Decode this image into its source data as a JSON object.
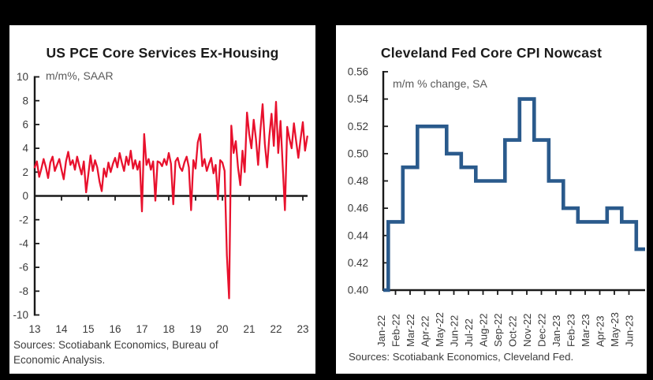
{
  "chart_data": [
    {
      "type": "line",
      "title": "US PCE Core Services Ex-Housing",
      "unit_label": "m/m%, SAAR",
      "sources": "Sources: Scotiabank Economics, Bureau of Economic Analysis.",
      "xlabel": "",
      "ylabel": "m/m%, SAAR",
      "ylim": [
        -10,
        10
      ],
      "y_tick_step": 2,
      "y_tick_labels": [
        "10",
        "8",
        "6",
        "4",
        "2",
        "0",
        "-2",
        "-4",
        "-6",
        "-8",
        "-10"
      ],
      "x_tick_labels": [
        "13",
        "14",
        "15",
        "16",
        "17",
        "18",
        "19",
        "20",
        "21",
        "22",
        "23"
      ],
      "x_start": "2013-01",
      "x_frequency": "monthly",
      "grid": false,
      "legend": "none",
      "line_color": "#E8112D",
      "axis_color": "#1a1a1a",
      "values": [
        2.4,
        2.9,
        1.6,
        2.3,
        3.1,
        2.4,
        1.5,
        2.8,
        3.3,
        2.1,
        2.6,
        3.1,
        2.2,
        1.4,
        2.9,
        3.7,
        2.6,
        3.0,
        2.2,
        3.3,
        2.5,
        1.8,
        2.9,
        0.3,
        1.8,
        3.4,
        2.1,
        3.0,
        2.4,
        1.2,
        0.4,
        2.3,
        1.6,
        2.8,
        2.0,
        2.7,
        3.2,
        2.4,
        3.6,
        2.8,
        2.1,
        3.3,
        2.6,
        3.8,
        2.3,
        3.0,
        2.2,
        2.9,
        -1.3,
        5.2,
        2.6,
        3.1,
        2.2,
        2.9,
        -0.4,
        2.9,
        2.8,
        2.5,
        3.1,
        2.6,
        3.6,
        2.7,
        -0.7,
        2.9,
        3.2,
        2.4,
        2.1,
        2.8,
        3.3,
        2.4,
        -1.2,
        3.0,
        2.3,
        4.5,
        5.2,
        2.5,
        3.1,
        2.1,
        2.7,
        3.2,
        1.9,
        2.6,
        -0.3,
        3.0,
        2.8,
        2.1,
        -5.0,
        -8.6,
        5.9,
        3.6,
        4.6,
        2.4,
        0.9,
        3.8,
        2.0,
        7.0,
        5.2,
        4.0,
        6.4,
        4.8,
        2.6,
        5.5,
        7.7,
        4.4,
        2.4,
        5.0,
        6.9,
        4.2,
        7.9,
        3.6,
        6.3,
        2.5,
        -1.2,
        5.8,
        4.8,
        4.0,
        6.1,
        4.6,
        3.2,
        4.8,
        6.2,
        3.8,
        5.0
      ]
    },
    {
      "type": "step",
      "title": "Cleveland Fed Core CPI Nowcast",
      "unit_label": "m/m % change, SA",
      "sources": "Sources: Scotiabank Economics, Cleveland Fed.",
      "xlabel": "",
      "ylabel": "m/m % change, SA",
      "ylim": [
        0.4,
        0.56
      ],
      "y_tick_step": 0.02,
      "y_tick_labels": [
        "0.56",
        "0.54",
        "0.52",
        "0.50",
        "0.48",
        "0.46",
        "0.44",
        "0.42",
        "0.40"
      ],
      "x_tick_labels": [
        "Jan-22",
        "Feb-22",
        "Mar-22",
        "Apr-22",
        "May-22",
        "Jun-22",
        "Jul-22",
        "Aug-22",
        "Sep-22",
        "Oct-22",
        "Nov-22",
        "Dec-22",
        "Jan-23",
        "Feb-23",
        "Mar-23",
        "Apr-23",
        "May-23",
        "Jun-23"
      ],
      "grid": false,
      "legend": "none",
      "line_color": "#2A5A8C",
      "axis_color": "#1a1a1a",
      "values": [
        0.4,
        0.45,
        0.49,
        0.52,
        0.52,
        0.5,
        0.49,
        0.48,
        0.48,
        0.51,
        0.54,
        0.51,
        0.48,
        0.46,
        0.45,
        0.45,
        0.46,
        0.45,
        0.43
      ]
    }
  ]
}
